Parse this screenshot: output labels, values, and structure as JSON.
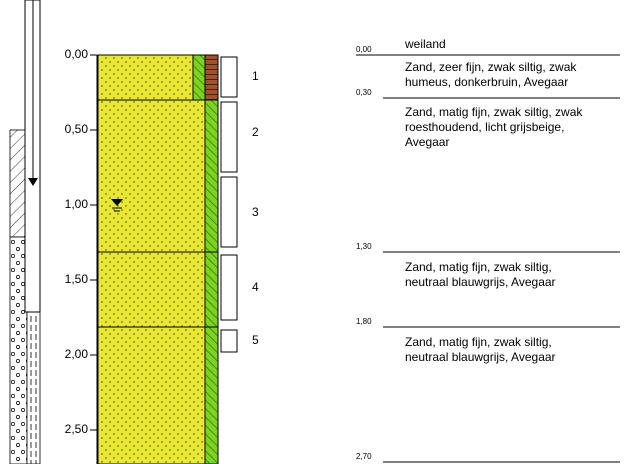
{
  "depth_axis": {
    "labels": [
      "0,00",
      "0,50",
      "1,00",
      "1,50",
      "2,00",
      "2,50"
    ]
  },
  "samples": [
    "1",
    "2",
    "3",
    "4",
    "5"
  ],
  "layers": [
    {
      "depth": "0,00",
      "lines": [
        "weiland"
      ]
    },
    {
      "depth": "0,30",
      "lines": [
        "Zand, zeer fijn, zwak siltig, zwak",
        "humeus, donkerbruin, Avegaar"
      ]
    },
    {
      "depth": "1,30",
      "lines": [
        "Zand, matig fijn, zwak siltig, zwak",
        "roesthoudend, licht grijsbeige,",
        "Avegaar"
      ]
    },
    {
      "depth": "1,80",
      "lines": [
        "Zand, matig fijn, zwak siltig,",
        "neutraal blauwgrijs, Avegaar"
      ]
    },
    {
      "depth": "2,70",
      "lines": [
        "Zand, matig fijn, zwak siltig,",
        "neutraal blauwgrijs, Avegaar"
      ]
    }
  ]
}
